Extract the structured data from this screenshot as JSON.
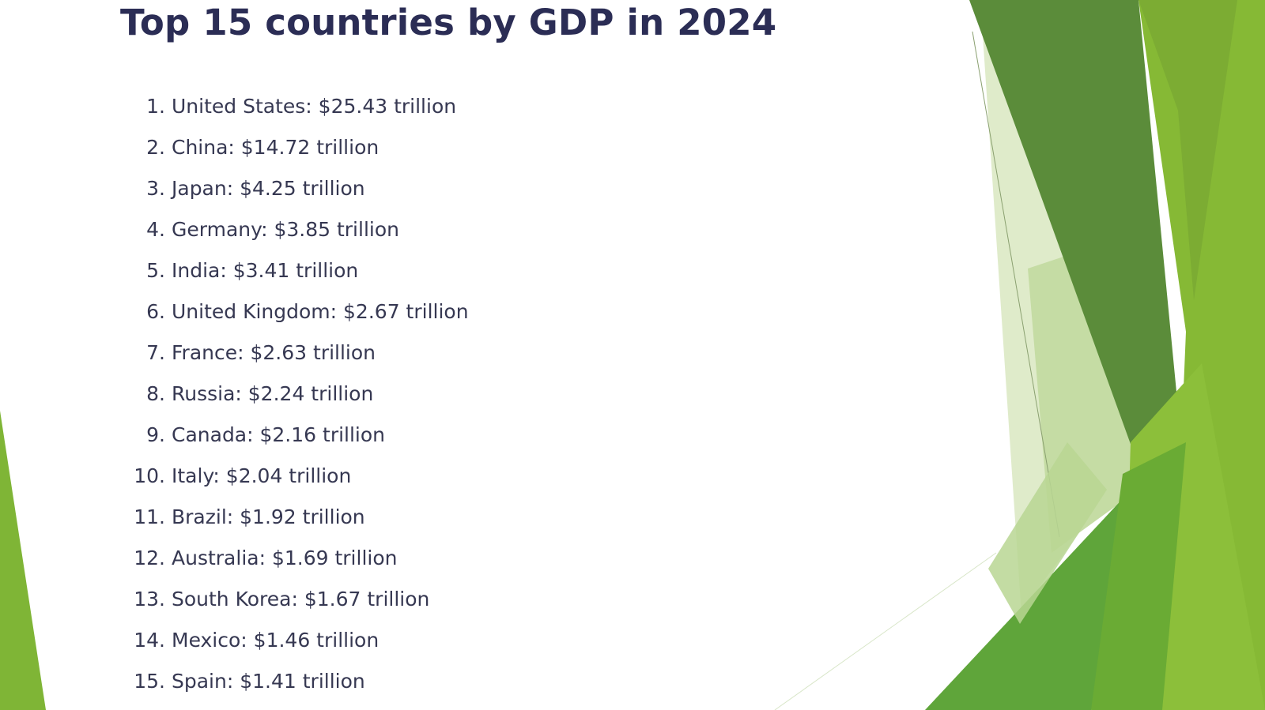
{
  "slide": {
    "title": "Top 15 countries by GDP in 2024"
  },
  "gdp_list": [
    {
      "rank": "1.",
      "text": "United States: $25.43 trillion"
    },
    {
      "rank": "2.",
      "text": "China: $14.72 trillion"
    },
    {
      "rank": "3.",
      "text": "Japan: $4.25 trillion"
    },
    {
      "rank": "4.",
      "text": "Germany: $3.85 trillion"
    },
    {
      "rank": "5.",
      "text": "India: $3.41 trillion"
    },
    {
      "rank": "6.",
      "text": "United Kingdom: $2.67 trillion"
    },
    {
      "rank": "7.",
      "text": "France: $2.63 trillion"
    },
    {
      "rank": "8.",
      "text": "Russia: $2.24 trillion"
    },
    {
      "rank": "9.",
      "text": "Canada: $2.16 trillion"
    },
    {
      "rank": "10.",
      "text": "Italy: $2.04 trillion"
    },
    {
      "rank": "11.",
      "text": "Brazil: $1.92 trillion"
    },
    {
      "rank": "12.",
      "text": "Australia: $1.69 trillion"
    },
    {
      "rank": "13.",
      "text": "South Korea: $1.67 trillion"
    },
    {
      "rank": "14.",
      "text": "Mexico: $1.46 trillion"
    },
    {
      "rank": "15.",
      "text": "Spain: $1.41 trillion"
    }
  ],
  "colors": {
    "title_text": "#2b2d55",
    "body_text": "#363852",
    "green_dark": "#5a8e3a",
    "green_mid": "#78a832",
    "green_light": "#8cbd3a",
    "green_pale": "#c9deab"
  }
}
